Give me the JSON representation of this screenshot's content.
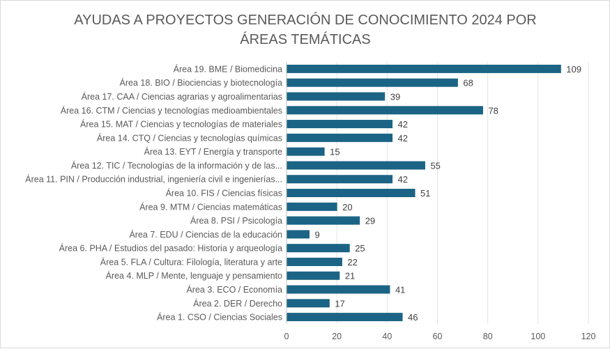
{
  "chart_data": {
    "type": "bar",
    "orientation": "horizontal",
    "title": [
      "AYUDAS A PROYECTOS GENERACIÓN DE CONOCIMIENTO 2024 POR",
      "ÁREAS TEMÁTICAS"
    ],
    "xlabel": "",
    "ylabel": "",
    "xlim": [
      0,
      120
    ],
    "xticks": [
      0,
      20,
      40,
      60,
      80,
      100,
      120
    ],
    "grid": true,
    "bar_color": "#1b6485",
    "categories": [
      "Área 19. BME / Biomedicina",
      "Área 18. BIO / Biociencias y biotecnología",
      "Área 17. CAA / Ciencias agrarias y agroalimentarias",
      "Área 16. CTM / Ciencias y tecnologías medioambientales",
      "Área 15. MAT / Ciencias y tecnologías de materiales",
      "Área 14. CTQ / Ciencias y tecnologías químicas",
      "Área 13. EYT / Energía y transporte",
      "Área 12. TIC / Tecnologías de la información y de las...",
      "Área 11. PIN / Producción industrial, ingeniería civil e ingenierías...",
      "Área 10. FIS / Ciencias físicas",
      "Área 9. MTM / Ciencias matemáticas",
      "Área 8. PSI / Psicología",
      "Área 7. EDU / Ciencias de la educación",
      "Área 6. PHA / Estudios del pasado: Historia y arqueología",
      "Área 5. FLA / Cultura: Filología, literatura y arte",
      "Área 4. MLP / Mente, lenguaje y pensamiento",
      "Área 3. ECO / Economía",
      "Área 2. DER / Derecho",
      "Área 1. CSO / Ciencias Sociales"
    ],
    "values": [
      109,
      68,
      39,
      78,
      42,
      42,
      15,
      55,
      42,
      51,
      20,
      29,
      9,
      25,
      22,
      21,
      41,
      17,
      46
    ]
  }
}
